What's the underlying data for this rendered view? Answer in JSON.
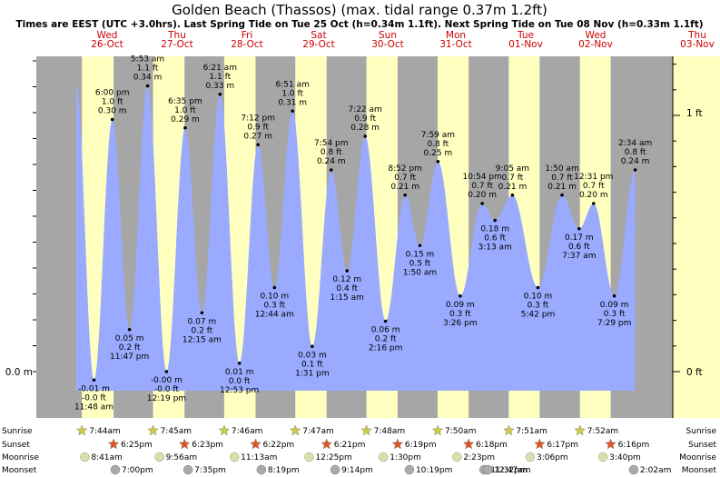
{
  "title": "Golden Beach (Thassos) (max. tidal range 0.37m 1.2ft)",
  "subtitle": "Times are EEST (UTC +3.0hrs). Last Spring Tide on Tue 25 Oct (h=0.34m 1.1ft). Next Spring Tide on Tue 08 Nov (h=0.33m 1.1ft)",
  "colors": {
    "night": "#a6a6a6",
    "day": "#ffffc0",
    "water": "#99aaff",
    "sun": "#cccc44",
    "sunset": "#dd5522",
    "moon": "#ddddaa",
    "moonset": "#aaaaaa"
  },
  "days": [
    {
      "dow": "Wed",
      "date": "26-Oct"
    },
    {
      "dow": "Thu",
      "date": "27-Oct"
    },
    {
      "dow": "Fri",
      "date": "28-Oct"
    },
    {
      "dow": "Sat",
      "date": "29-Oct"
    },
    {
      "dow": "Sun",
      "date": "30-Oct"
    },
    {
      "dow": "Mon",
      "date": "31-Oct"
    },
    {
      "dow": "Tue",
      "date": "01-Nov"
    },
    {
      "dow": "Wed",
      "date": "02-Nov"
    },
    {
      "dow": "Thu",
      "date": "03-Nov"
    }
  ],
  "axis": {
    "left_label": "0.0 m",
    "right_labels": [
      "0 ft",
      "1 ft"
    ]
  },
  "chart_data": {
    "type": "area",
    "title": "Golden Beach (Thassos) (max. tidal range 0.37m 1.2ft)",
    "x_unit": "hours since Wed 26-Oct 00:00",
    "y_unit": "m",
    "ylim": [
      -0.02,
      0.37
    ],
    "points": [
      {
        "t": 11.8,
        "h": -0.01,
        "m": "-0.01 m",
        "ft": "-0.0 ft",
        "time": "11:48 am"
      },
      {
        "t": 18.0,
        "h": 0.3,
        "m": "6:00 pm",
        "ft": "1.0 ft",
        "time": "0.30 m",
        "high": true
      },
      {
        "t": 23.8,
        "h": 0.05,
        "m": "0.05 m",
        "ft": "0.2 ft",
        "time": "11:47 pm"
      },
      {
        "t": 29.9,
        "h": 0.34,
        "m": "5:53 am",
        "ft": "1.1 ft",
        "time": "0.34 m",
        "high": true
      },
      {
        "t": 36.3,
        "h": -0.0,
        "m": "-0.00 m",
        "ft": "-0.0 ft",
        "time": "12:19 pm"
      },
      {
        "t": 42.6,
        "h": 0.29,
        "m": "6:35 pm",
        "ft": "1.0 ft",
        "time": "0.29 m",
        "high": true
      },
      {
        "t": 48.25,
        "h": 0.07,
        "m": "0.07 m",
        "ft": "0.2 ft",
        "time": "12:15 am"
      },
      {
        "t": 54.35,
        "h": 0.33,
        "m": "6:21 am",
        "ft": "1.1 ft",
        "time": "0.33 m",
        "high": true
      },
      {
        "t": 60.9,
        "h": 0.01,
        "m": "0.01 m",
        "ft": "0.0 ft",
        "time": "12:53 pm"
      },
      {
        "t": 67.2,
        "h": 0.27,
        "m": "7:12 pm",
        "ft": "0.9 ft",
        "time": "0.27 m",
        "high": true
      },
      {
        "t": 72.75,
        "h": 0.1,
        "m": "0.10 m",
        "ft": "0.3 ft",
        "time": "12:44 am"
      },
      {
        "t": 78.85,
        "h": 0.31,
        "m": "6:51 am",
        "ft": "1.0 ft",
        "time": "0.31 m",
        "high": true
      },
      {
        "t": 85.5,
        "h": 0.03,
        "m": "0.03 m",
        "ft": "0.1 ft",
        "time": "1:31 pm"
      },
      {
        "t": 91.9,
        "h": 0.24,
        "m": "7:54 pm",
        "ft": "0.8 ft",
        "time": "0.24 m",
        "high": true
      },
      {
        "t": 97.25,
        "h": 0.12,
        "m": "0.12 m",
        "ft": "0.4 ft",
        "time": "1:15 am"
      },
      {
        "t": 103.35,
        "h": 0.28,
        "m": "7:22 am",
        "ft": "0.9 ft",
        "time": "0.28 m",
        "high": true
      },
      {
        "t": 110.25,
        "h": 0.06,
        "m": "0.06 m",
        "ft": "0.2 ft",
        "time": "2:16 pm"
      },
      {
        "t": 116.85,
        "h": 0.21,
        "m": "8:52 pm",
        "ft": "0.7 ft",
        "time": "0.21 m",
        "high": true
      },
      {
        "t": 121.85,
        "h": 0.15,
        "m": "0.15 m",
        "ft": "0.5 ft",
        "time": "1:50 am"
      },
      {
        "t": 127.95,
        "h": 0.25,
        "m": "7:59 am",
        "ft": "0.8 ft",
        "time": "0.25 m",
        "high": true
      },
      {
        "t": 135.45,
        "h": 0.09,
        "m": "0.09 m",
        "ft": "0.3 ft",
        "time": "3:26 pm"
      },
      {
        "t": 142.9,
        "h": 0.2,
        "m": "10:54 pm",
        "ft": "0.7 ft",
        "time": "0.20 m",
        "high": true
      },
      {
        "t": 147.2,
        "h": 0.18,
        "m": "0.18 m",
        "ft": "0.6 ft",
        "time": "3:13 am"
      },
      {
        "t": 153.1,
        "h": 0.21,
        "m": "9:05 am",
        "ft": "0.7 ft",
        "time": "0.21 m",
        "high": true
      },
      {
        "t": 161.7,
        "h": 0.1,
        "m": "0.10 m",
        "ft": "0.3 ft",
        "time": "5:42 pm"
      },
      {
        "t": 169.85,
        "h": 0.21,
        "m": "1:50 am",
        "ft": "0.7 ft",
        "time": "0.21 m",
        "high": true
      },
      {
        "t": 175.6,
        "h": 0.17,
        "m": "0.17 m",
        "ft": "0.6 ft",
        "time": "7:37 am"
      },
      {
        "t": 180.5,
        "h": 0.2,
        "m": "12:31 pm",
        "ft": "0.7 ft",
        "time": "0.20 m",
        "high": true
      },
      {
        "t": 187.5,
        "h": 0.09,
        "m": "0.09 m",
        "ft": "0.3 ft",
        "time": "7:29 pm"
      },
      {
        "t": 194.55,
        "h": 0.24,
        "m": "2:34 am",
        "ft": "0.8 ft",
        "time": "0.24 m",
        "high": true
      }
    ],
    "sun": [
      {
        "rise": "7:44am",
        "set": "6:25pm",
        "rise_t": 7.73,
        "set_t": 18.42
      },
      {
        "rise": "7:45am",
        "set": "6:23pm",
        "rise_t": 31.75,
        "set_t": 42.38
      },
      {
        "rise": "7:46am",
        "set": "6:22pm",
        "rise_t": 55.77,
        "set_t": 66.37
      },
      {
        "rise": "7:47am",
        "set": "6:21pm",
        "rise_t": 79.78,
        "set_t": 90.35
      },
      {
        "rise": "7:48am",
        "set": "6:19pm",
        "rise_t": 103.8,
        "set_t": 114.32
      },
      {
        "rise": "7:50am",
        "set": "6:18pm",
        "rise_t": 127.83,
        "set_t": 138.3
      },
      {
        "rise": "7:51am",
        "set": "6:17pm",
        "rise_t": 151.85,
        "set_t": 162.28
      },
      {
        "rise": "7:52am",
        "set": "6:16pm",
        "rise_t": 175.87,
        "set_t": 186.27
      }
    ],
    "moonrise": [
      {
        "time": "8:41am",
        "t": 8.68
      },
      {
        "time": "9:56am",
        "t": 33.93
      },
      {
        "time": "11:13am",
        "t": 59.22
      },
      {
        "time": "12:25pm",
        "t": 84.42
      },
      {
        "time": "1:30pm",
        "t": 109.5
      },
      {
        "time": "2:23pm",
        "t": 134.38
      },
      {
        "time": "3:06pm",
        "t": 159.1
      },
      {
        "time": "3:40pm",
        "t": 183.67
      }
    ],
    "moonset": [
      {
        "time": "7:00pm",
        "t": 19.0
      },
      {
        "time": "7:35pm",
        "t": 43.58
      },
      {
        "time": "8:19pm",
        "t": 68.32
      },
      {
        "time": "9:14pm",
        "t": 93.23
      },
      {
        "time": "10:19pm",
        "t": 118.32
      },
      {
        "time": "11:32pm",
        "t": 143.53
      },
      {
        "time": "12:47am",
        "t": 144.78
      },
      {
        "time": "2:02am",
        "t": 194.03
      }
    ]
  },
  "rows": [
    "Sunrise",
    "Sunset",
    "Moonrise",
    "Moonset"
  ]
}
